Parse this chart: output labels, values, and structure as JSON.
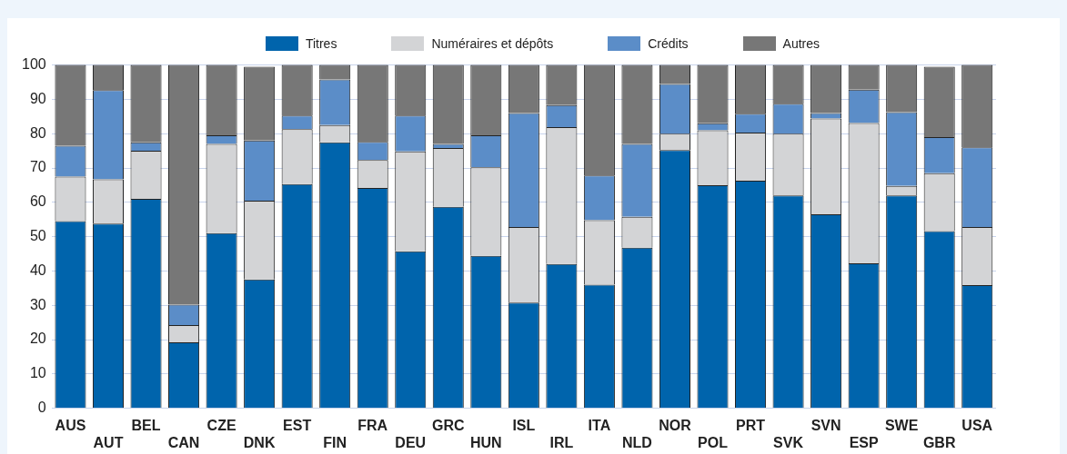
{
  "chart_data": {
    "type": "bar",
    "stacked": true,
    "categories": [
      "AUS",
      "AUT",
      "BEL",
      "CAN",
      "CZE",
      "DNK",
      "EST",
      "FIN",
      "FRA",
      "DEU",
      "GRC",
      "HUN",
      "ISL",
      "IRL",
      "ITA",
      "NLD",
      "NOR",
      "POL",
      "PRT",
      "SVK",
      "SVN",
      "ESP",
      "SWE",
      "GBR",
      "USA"
    ],
    "series": [
      {
        "name": "Titres",
        "color": "#0064ac",
        "values": [
          54.5,
          53.8,
          61,
          19.2,
          51,
          37.5,
          65.3,
          77.5,
          64.2,
          45.7,
          58.7,
          44.4,
          30.8,
          42,
          36,
          46.8,
          75.2,
          65,
          66.3,
          62,
          56.5,
          42.2,
          62,
          51.6,
          35.9
        ]
      },
      {
        "name": "Numéraires et dépôts",
        "color": "#d3d4d6",
        "values": [
          13,
          12.9,
          14,
          5,
          26,
          23,
          16,
          5,
          8.1,
          29.1,
          17.1,
          25.8,
          22,
          39.9,
          18.8,
          9,
          4.8,
          16,
          14,
          18,
          27.9,
          40.9,
          2.8,
          16.9,
          16.9
        ]
      },
      {
        "name": "Crédits",
        "color": "#5b8dc8",
        "values": [
          9,
          26,
          2.5,
          6,
          2.5,
          17.5,
          4,
          13.3,
          5.3,
          10.5,
          1.2,
          9.3,
          33.2,
          6.4,
          13,
          21.2,
          14.5,
          2,
          5.5,
          8.7,
          1.6,
          9.7,
          21.5,
          10.5,
          23.2
        ]
      },
      {
        "name": "Autres",
        "color": "#777777",
        "values": [
          23.5,
          7.3,
          22.5,
          69.8,
          20.5,
          21.5,
          14.7,
          4.2,
          22.4,
          14.7,
          23,
          20.5,
          14,
          11.7,
          32.2,
          23,
          5.5,
          17,
          14.2,
          11.3,
          14,
          7.2,
          13.7,
          20.5,
          24
        ]
      }
    ],
    "ylim": [
      0,
      100
    ],
    "yticks": [
      0,
      10,
      20,
      30,
      40,
      50,
      60,
      70,
      80,
      90,
      100
    ],
    "grid": "y",
    "legend": "top"
  }
}
